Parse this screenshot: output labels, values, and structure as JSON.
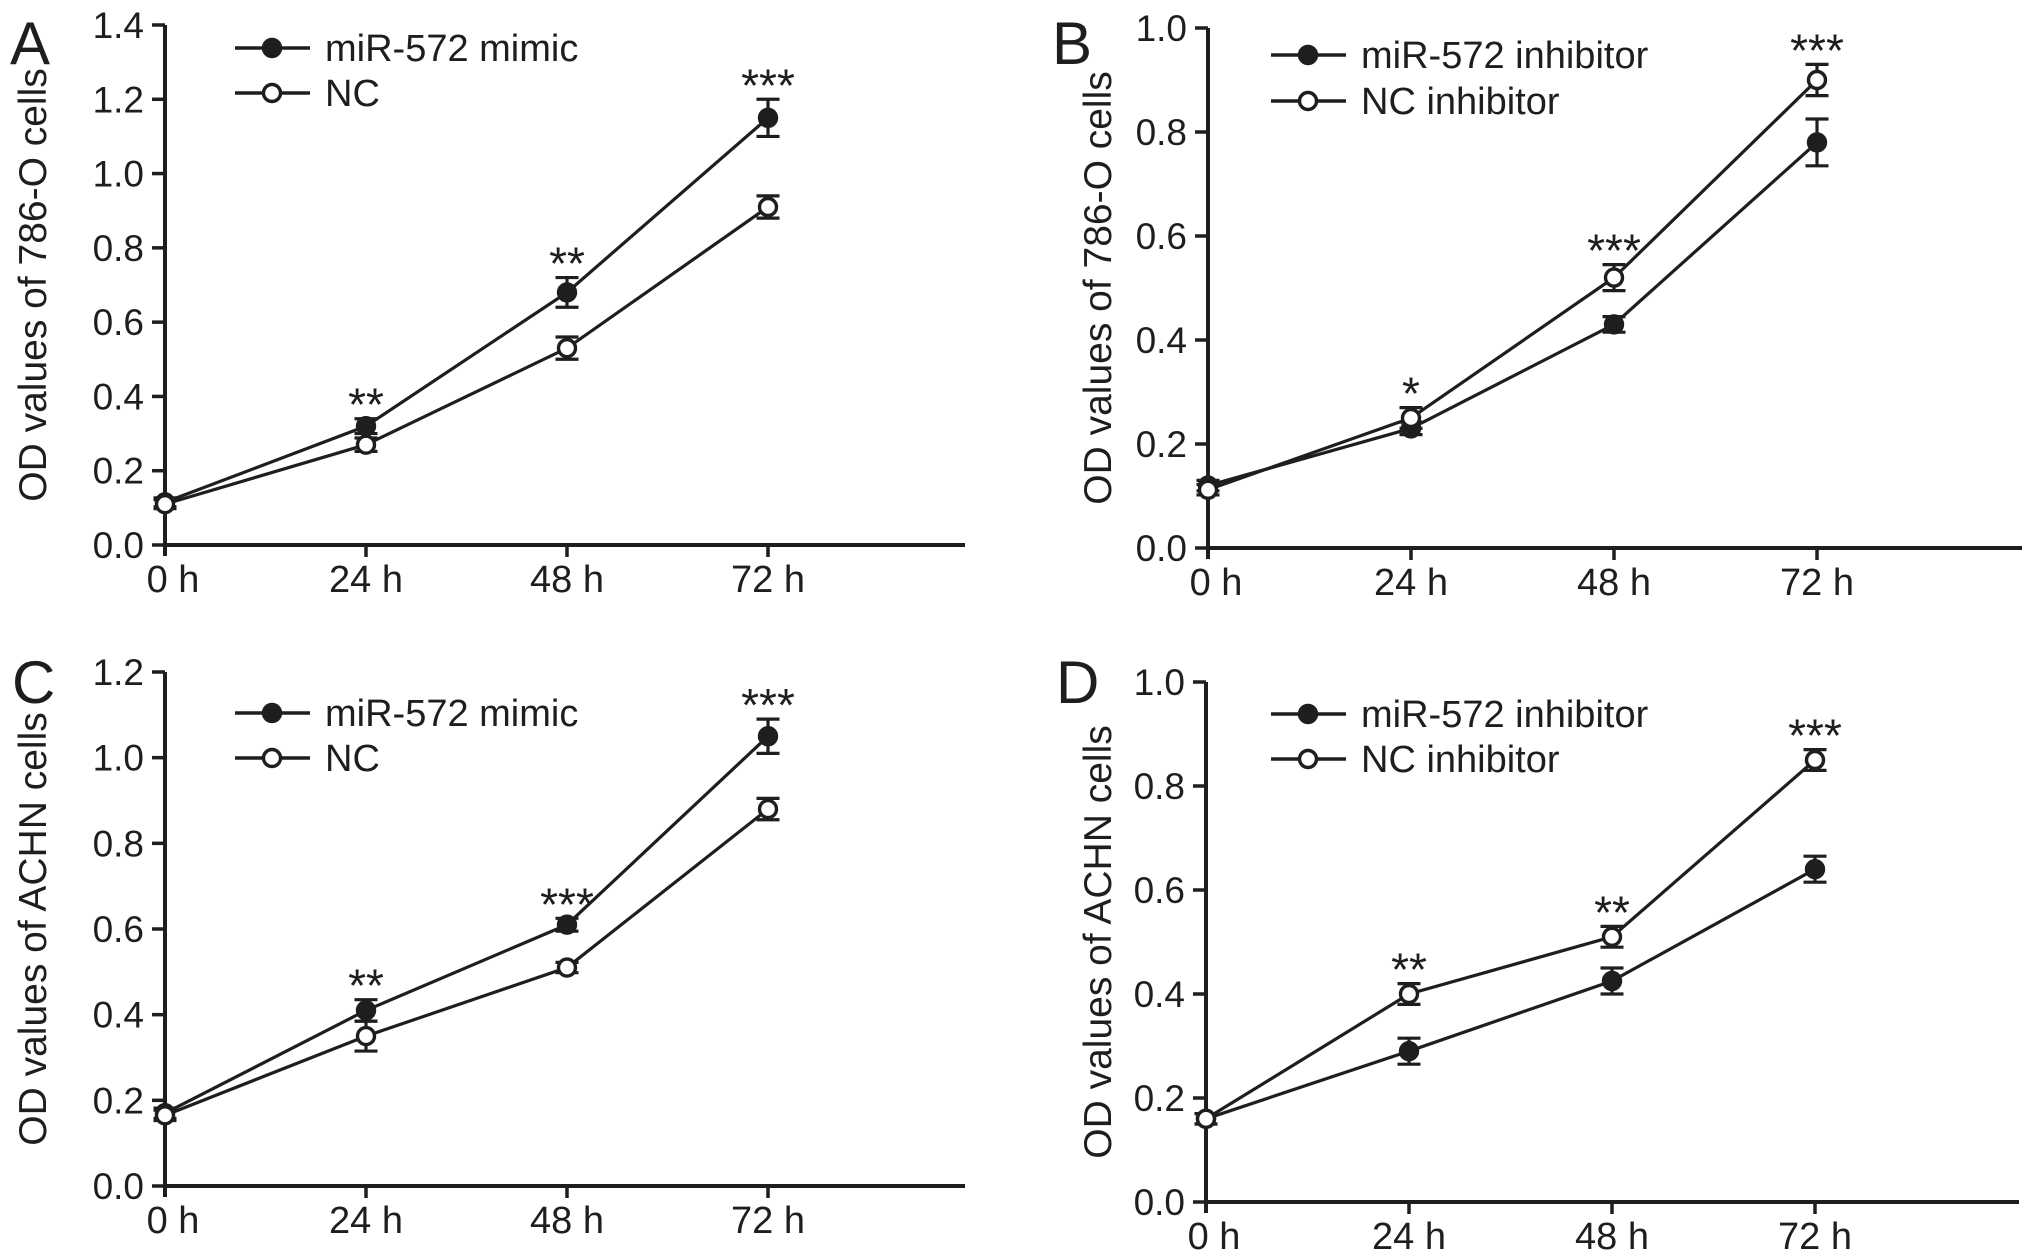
{
  "figure": {
    "background": "#ffffff",
    "ink": "#1e1e1e",
    "panel_labels": [
      "A",
      "B",
      "C",
      "D"
    ]
  },
  "chart_data": [
    {
      "type": "line",
      "panel_label": "A",
      "title": "",
      "xlabel": "",
      "ylabel": "OD values of 786-O cells",
      "categories": [
        "0 h",
        "24 h",
        "48 h",
        "72 h"
      ],
      "ylim": [
        0.0,
        1.4
      ],
      "ytick_labels": [
        "0.0",
        "0.2",
        "0.4",
        "0.6",
        "0.8",
        "1.0",
        "1.2",
        "1.4"
      ],
      "grid": false,
      "legend_position": "top-left-inside",
      "series": [
        {
          "name": "miR-572 mimic",
          "marker": "filled-circle",
          "values": [
            0.115,
            0.32,
            0.68,
            1.15
          ],
          "errors": [
            0.012,
            0.02,
            0.04,
            0.05
          ]
        },
        {
          "name": "NC",
          "marker": "open-circle",
          "values": [
            0.11,
            0.27,
            0.53,
            0.91
          ],
          "errors": [
            0.012,
            0.018,
            0.03,
            0.03
          ]
        }
      ],
      "significance": [
        {
          "category_index": 1,
          "category": "24 h",
          "label": "**",
          "above_series": 0
        },
        {
          "category_index": 2,
          "category": "48 h",
          "label": "**",
          "above_series": 0
        },
        {
          "category_index": 3,
          "category": "72 h",
          "label": "***",
          "above_series": 0
        }
      ]
    },
    {
      "type": "line",
      "panel_label": "B",
      "title": "",
      "xlabel": "",
      "ylabel": "OD values of 786-O cells",
      "categories": [
        "0 h",
        "24 h",
        "48 h",
        "72 h"
      ],
      "ylim": [
        0.0,
        1.0
      ],
      "ytick_labels": [
        "0.0",
        "0.2",
        "0.4",
        "0.6",
        "0.8",
        "1.0"
      ],
      "grid": false,
      "legend_position": "top-left-inside",
      "series": [
        {
          "name": "miR-572 inhibitor",
          "marker": "filled-circle",
          "values": [
            0.12,
            0.23,
            0.43,
            0.78
          ],
          "errors": [
            0.01,
            0.012,
            0.015,
            0.045
          ]
        },
        {
          "name": "NC inhibitor",
          "marker": "open-circle",
          "values": [
            0.112,
            0.25,
            0.52,
            0.9
          ],
          "errors": [
            0.01,
            0.02,
            0.025,
            0.03
          ]
        }
      ],
      "significance": [
        {
          "category_index": 1,
          "category": "24 h",
          "label": "*",
          "above_series": 1
        },
        {
          "category_index": 2,
          "category": "48 h",
          "label": "***",
          "above_series": 1
        },
        {
          "category_index": 3,
          "category": "72 h",
          "label": "***",
          "above_series": 1
        }
      ]
    },
    {
      "type": "line",
      "panel_label": "C",
      "title": "",
      "xlabel": "",
      "ylabel": "OD values of ACHN cells",
      "categories": [
        "0 h",
        "24 h",
        "48 h",
        "72 h"
      ],
      "ylim": [
        0.0,
        1.2
      ],
      "ytick_labels": [
        "0.0",
        "0.2",
        "0.4",
        "0.6",
        "0.8",
        "1.0",
        "1.2"
      ],
      "grid": false,
      "legend_position": "top-left-inside",
      "series": [
        {
          "name": "miR-572 mimic",
          "marker": "filled-circle",
          "values": [
            0.17,
            0.41,
            0.61,
            1.05
          ],
          "errors": [
            0.012,
            0.025,
            0.015,
            0.04
          ]
        },
        {
          "name": "NC",
          "marker": "open-circle",
          "values": [
            0.165,
            0.35,
            0.51,
            0.88
          ],
          "errors": [
            0.012,
            0.035,
            0.012,
            0.025
          ]
        }
      ],
      "significance": [
        {
          "category_index": 1,
          "category": "24 h",
          "label": "**",
          "above_series": 0
        },
        {
          "category_index": 2,
          "category": "48 h",
          "label": "***",
          "above_series": 0
        },
        {
          "category_index": 3,
          "category": "72 h",
          "label": "***",
          "above_series": 0
        }
      ]
    },
    {
      "type": "line",
      "panel_label": "D",
      "title": "",
      "xlabel": "",
      "ylabel": "OD values of ACHN cells",
      "categories": [
        "0 h",
        "24 h",
        "48 h",
        "72 h"
      ],
      "ylim": [
        0.0,
        1.0
      ],
      "ytick_labels": [
        "0.0",
        "0.2",
        "0.4",
        "0.6",
        "0.8",
        "1.0"
      ],
      "grid": false,
      "legend_position": "top-left-inside",
      "series": [
        {
          "name": "miR-572 inhibitor",
          "marker": "filled-circle",
          "values": [
            0.16,
            0.29,
            0.425,
            0.64
          ],
          "errors": [
            0.01,
            0.025,
            0.025,
            0.025
          ]
        },
        {
          "name": "NC inhibitor",
          "marker": "open-circle",
          "values": [
            0.16,
            0.4,
            0.51,
            0.85
          ],
          "errors": [
            0.01,
            0.02,
            0.02,
            0.02
          ]
        }
      ],
      "significance": [
        {
          "category_index": 1,
          "category": "24 h",
          "label": "**",
          "above_series": 1
        },
        {
          "category_index": 2,
          "category": "48 h",
          "label": "**",
          "above_series": 1
        },
        {
          "category_index": 3,
          "category": "72 h",
          "label": "***",
          "above_series": 1
        }
      ]
    }
  ]
}
